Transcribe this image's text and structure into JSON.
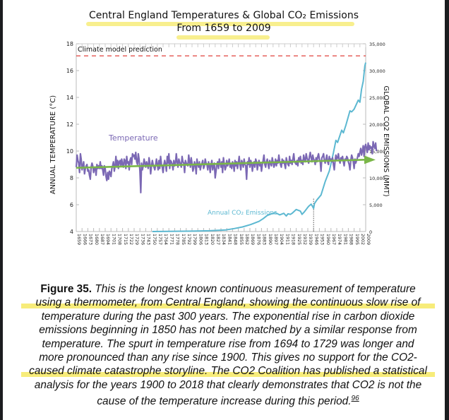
{
  "chart_data": {
    "type": "line",
    "title": "Central England Temperatures & Global CO₂ Emissions",
    "subtitle": "From 1659 to 2009",
    "xlabel": "",
    "ylabel_left": "ANNUAL TEMPERATURE (°C)",
    "ylabel_right": "GLOBAL CO2 EMISSIONS (MMT)",
    "ylim_left": [
      4,
      18
    ],
    "ylim_right": [
      0,
      35000
    ],
    "xlim": [
      1659,
      2009
    ],
    "yticks_left": [
      "4",
      "6",
      "8",
      "10",
      "12",
      "14",
      "16",
      "18"
    ],
    "yticks_right": [
      "0",
      "5,000",
      "10,000",
      "15,000",
      "20,000",
      "25,000",
      "30,000",
      "35,000"
    ],
    "xticks": [
      "1659",
      "1666",
      "1673",
      "1680",
      "1687",
      "1694",
      "1701",
      "1708",
      "1715",
      "1722",
      "1729",
      "1736",
      "1743",
      "1750",
      "1757",
      "1764",
      "1771",
      "1778",
      "1785",
      "1792",
      "1799",
      "1806",
      "1813",
      "1820",
      "1827",
      "1834",
      "1841",
      "1848",
      "1855",
      "1862",
      "1869",
      "1876",
      "1883",
      "1890",
      "1897",
      "1904",
      "1911",
      "1918",
      "1925",
      "1932",
      "1939",
      "1946",
      "1953",
      "1960",
      "1967",
      "1974",
      "1981",
      "1988",
      "1995",
      "2002",
      "2009"
    ],
    "annotations": [
      {
        "text": "Climate model prediction",
        "type": "hline",
        "value_left": 17.1,
        "color": "#e0413b"
      },
      {
        "text": "Temperature",
        "series": "temperature",
        "color": "#7b68b4"
      },
      {
        "text": "Annual CO₂ Emissions",
        "series": "co2",
        "color": "#5cb8d1"
      },
      {
        "type": "vline",
        "x": 1946,
        "style": "dotted"
      }
    ],
    "series": [
      {
        "name": "Temperature",
        "axis": "left",
        "color": "#7b68b4",
        "x_start": 1659,
        "x_step": 1,
        "values": [
          8.8,
          9.7,
          9.3,
          9.1,
          8.4,
          9.8,
          9.4,
          8.6,
          8.9,
          9.2,
          8.3,
          8.7,
          8.9,
          9.0,
          8.5,
          8.6,
          8.2,
          7.9,
          8.8,
          9.1,
          8.9,
          8.4,
          8.7,
          8.8,
          8.2,
          9.0,
          8.7,
          8.9,
          8.7,
          9.2,
          8.7,
          8.9,
          8.6,
          8.2,
          8.9,
          8.7,
          8.1,
          7.8,
          8.4,
          7.9,
          8.5,
          8.4,
          8.1,
          8.7,
          8.9,
          9.2,
          8.5,
          8.9,
          9.6,
          8.8,
          9.3,
          8.7,
          9.2,
          9.3,
          8.9,
          9.4,
          9.0,
          8.8,
          9.4,
          9.3,
          8.7,
          9.6,
          9.1,
          9.2,
          8.6,
          9.3,
          9.5,
          9.0,
          9.8,
          9.6,
          9.7,
          9.4,
          9.9,
          9.2,
          9.0,
          9.8,
          9.4,
          8.5,
          6.9,
          9.1,
          8.6,
          8.9,
          9.4,
          9.1,
          8.8,
          9.2,
          9.0,
          8.7,
          9.5,
          9.1,
          8.3,
          8.9,
          9.3,
          9.0,
          8.8,
          8.6,
          9.0,
          9.4,
          9.0,
          8.6,
          9.3,
          8.7,
          9.6,
          9.0,
          8.8,
          8.4,
          9.0,
          9.3,
          9.0,
          8.5,
          9.6,
          9.1,
          9.8,
          8.7,
          9.3,
          9.2,
          9.0,
          8.6,
          9.3,
          8.9,
          9.1,
          9.8,
          9.2,
          8.8,
          9.4,
          9.2,
          9.0,
          8.8,
          9.6,
          9.2,
          9.1,
          8.4,
          9.3,
          9.1,
          9.0,
          8.9,
          9.7,
          9.2,
          8.8,
          9.5,
          9.1,
          8.5,
          8.7,
          9.2,
          9.0,
          8.3,
          9.4,
          9.0,
          8.8,
          9.2,
          8.6,
          8.9,
          9.1,
          9.3,
          8.7,
          8.9,
          9.4,
          9.1,
          9.0,
          8.6,
          9.2,
          8.9,
          8.4,
          9.0,
          9.3,
          8.6,
          8.9,
          9.1,
          8.0,
          8.5,
          9.0,
          9.2,
          8.7,
          9.4,
          9.1,
          8.8,
          9.2,
          8.4,
          9.5,
          9.0,
          8.6,
          8.8,
          9.3,
          8.9,
          9.1,
          9.4,
          8.8,
          9.0,
          8.7,
          9.2,
          9.0,
          8.5,
          9.3,
          8.9,
          9.2,
          8.7,
          9.1,
          9.6,
          9.0,
          8.6,
          9.3,
          9.1,
          8.8,
          9.4,
          9.0,
          8.9,
          7.9,
          9.2,
          9.0,
          9.5,
          8.8,
          9.3,
          9.1,
          8.5,
          9.0,
          9.2,
          8.8,
          9.4,
          9.2,
          8.6,
          9.0,
          9.3,
          8.9,
          9.1,
          8.5,
          9.0,
          9.3,
          9.7,
          9.0,
          8.8,
          9.2,
          9.4,
          9.0,
          8.7,
          9.3,
          9.1,
          8.9,
          9.5,
          9.2,
          8.8,
          9.0,
          9.4,
          8.9,
          9.3,
          9.1,
          9.7,
          9.2,
          9.0,
          8.8,
          9.4,
          9.1,
          9.3,
          9.0,
          8.7,
          9.5,
          9.2,
          9.0,
          8.9,
          9.6,
          9.1,
          9.3,
          9.0,
          9.4,
          9.8,
          9.2,
          9.1,
          9.0,
          9.3,
          8.9,
          9.5,
          9.2,
          9.6,
          9.1,
          9.3,
          9.0,
          9.7,
          9.4,
          9.2,
          9.8,
          9.5,
          9.3,
          9.1,
          9.6,
          9.9,
          9.5,
          9.2,
          9.7,
          9.4,
          9.3,
          9.0,
          9.5,
          9.2,
          9.6,
          9.8,
          9.4,
          9.2,
          8.5,
          9.5,
          9.6,
          9.8,
          9.3,
          9.1,
          9.4,
          9.7,
          9.2,
          9.0,
          9.6,
          9.3,
          9.4,
          9.2,
          9.5,
          9.0,
          8.6,
          9.3,
          9.7,
          9.4,
          9.5,
          9.8,
          9.3,
          9.1,
          9.5,
          9.4,
          9.6,
          9.2,
          8.9,
          9.4,
          9.3,
          9.6,
          9.5,
          9.2,
          9.0,
          8.6,
          9.3,
          9.7,
          9.5,
          9.2,
          8.7,
          9.4,
          9.1,
          9.3,
          9.5,
          9.8,
          9.6,
          9.9,
          10.2,
          9.7,
          10.0,
          10.4,
          9.6,
          10.3,
          10.5,
          10.2,
          9.9,
          10.6,
          10.1,
          10.4,
          10.2,
          10.3,
          9.8,
          10.7,
          10.4,
          10.2,
          10.6,
          10.0
        ]
      },
      {
        "name": "Annual CO₂ Emissions",
        "axis": "right",
        "color": "#5cb8d1",
        "x": [
          1751,
          1780,
          1800,
          1820,
          1840,
          1850,
          1860,
          1870,
          1880,
          1885,
          1890,
          1895,
          1900,
          1905,
          1910,
          1913,
          1915,
          1918,
          1920,
          1925,
          1930,
          1932,
          1935,
          1938,
          1940,
          1943,
          1945,
          1946,
          1947,
          1950,
          1955,
          1960,
          1965,
          1970,
          1973,
          1975,
          1980,
          1982,
          1985,
          1990,
          1992,
          1995,
          2000,
          2002,
          2004,
          2006,
          2008,
          2009
        ],
        "values": [
          0,
          50,
          80,
          150,
          300,
          550,
          850,
          1300,
          1900,
          2400,
          3000,
          3300,
          3500,
          3100,
          3400,
          2900,
          3300,
          3200,
          3400,
          4100,
          3800,
          3200,
          3700,
          4300,
          4700,
          5100,
          4600,
          4300,
          5200,
          5900,
          6800,
          9300,
          11300,
          14700,
          17000,
          16600,
          18900,
          18400,
          19800,
          22500,
          22300,
          22800,
          24500,
          24100,
          26500,
          28000,
          30900,
          31500
        ]
      },
      {
        "name": "Trend",
        "axis": "left",
        "color": "#7ab648",
        "style": "arrow",
        "x": [
          1659,
          2009
        ],
        "values": [
          8.75,
          9.35
        ]
      }
    ],
    "grid": false,
    "legend": "inline labels"
  },
  "caption": {
    "label": "Figure 35.",
    "lines": [
      "This is the longest known continuous measurement of temperature",
      "using a thermometer, from Central England, showing the continuous slow rise of",
      "temperature during the past 300 years. The exponential rise in carbon dioxide",
      "emissions beginning in 1850 has not been matched by a similar response from",
      "temperature. The spurt in temperature rise from 1694 to 1729 was longer and",
      "more pronounced than any rise since 1900. This gives no support for the CO2-",
      "caused climate catastrophe storyline. The CO2 Coalition has published a statistical",
      "analysis for the years 1900 to 2018 that clearly demonstrates that CO2 is not the",
      "cause of the temperature increase during this period."
    ],
    "footnote": "96"
  },
  "colors": {
    "temperature": "#7b68b4",
    "co2": "#5cb8d1",
    "trend": "#7ab648",
    "prediction": "#e0413b",
    "highlight": "#f7ec7a"
  }
}
